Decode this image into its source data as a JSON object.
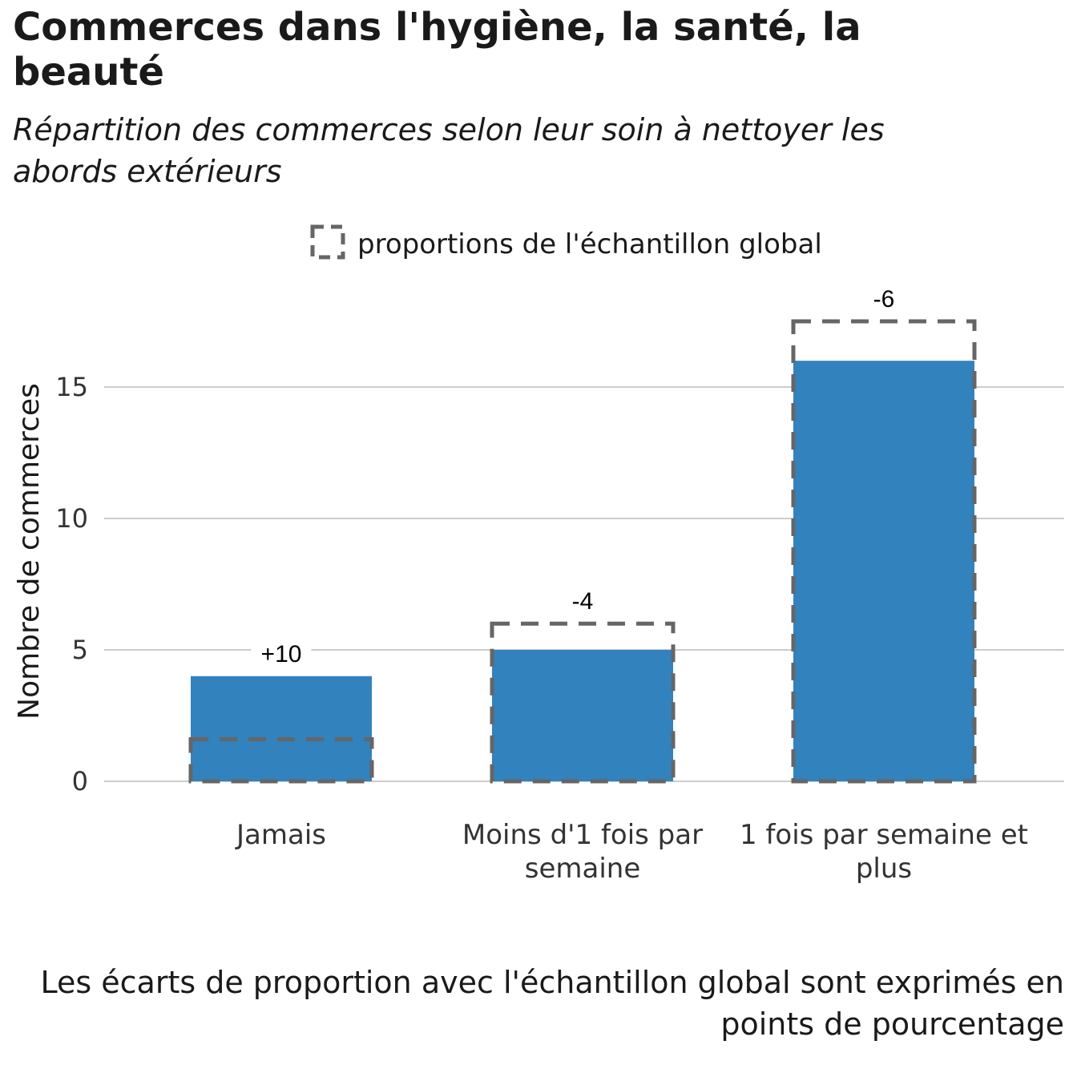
{
  "title": "Commerces dans l'hygiène, la santé, la beauté",
  "subtitle": "Répartition des commerces selon leur soin à nettoyer les abords extérieurs",
  "caption": "Les écarts de proportion avec l'échantillon global sont exprimés en points de pourcentage",
  "legend": {
    "label": "proportions de l'échantillon global",
    "placement": "top-center"
  },
  "chart_data": {
    "type": "bar",
    "categories": [
      "Jamais",
      "Moins d'1 fois par semaine",
      "1 fois par semaine et plus"
    ],
    "category_lines": [
      [
        "Jamais"
      ],
      [
        "Moins d'1 fois par",
        "semaine"
      ],
      [
        "1 fois par semaine et",
        "plus"
      ]
    ],
    "values": [
      4,
      5,
      16
    ],
    "reference_values": [
      1.6,
      6,
      17.5
    ],
    "reference_name": "proportions de l'échantillon global",
    "difference_labels": [
      "+10",
      "-4",
      "-6"
    ],
    "ylabel": "Nombre de commerces",
    "xlabel": "",
    "ylim": [
      0,
      18
    ],
    "yticks": [
      0,
      5,
      10,
      15
    ],
    "grid": true,
    "colors": {
      "bar": "#3282BD",
      "reference": "#666666",
      "grid": "#cccccc"
    }
  }
}
